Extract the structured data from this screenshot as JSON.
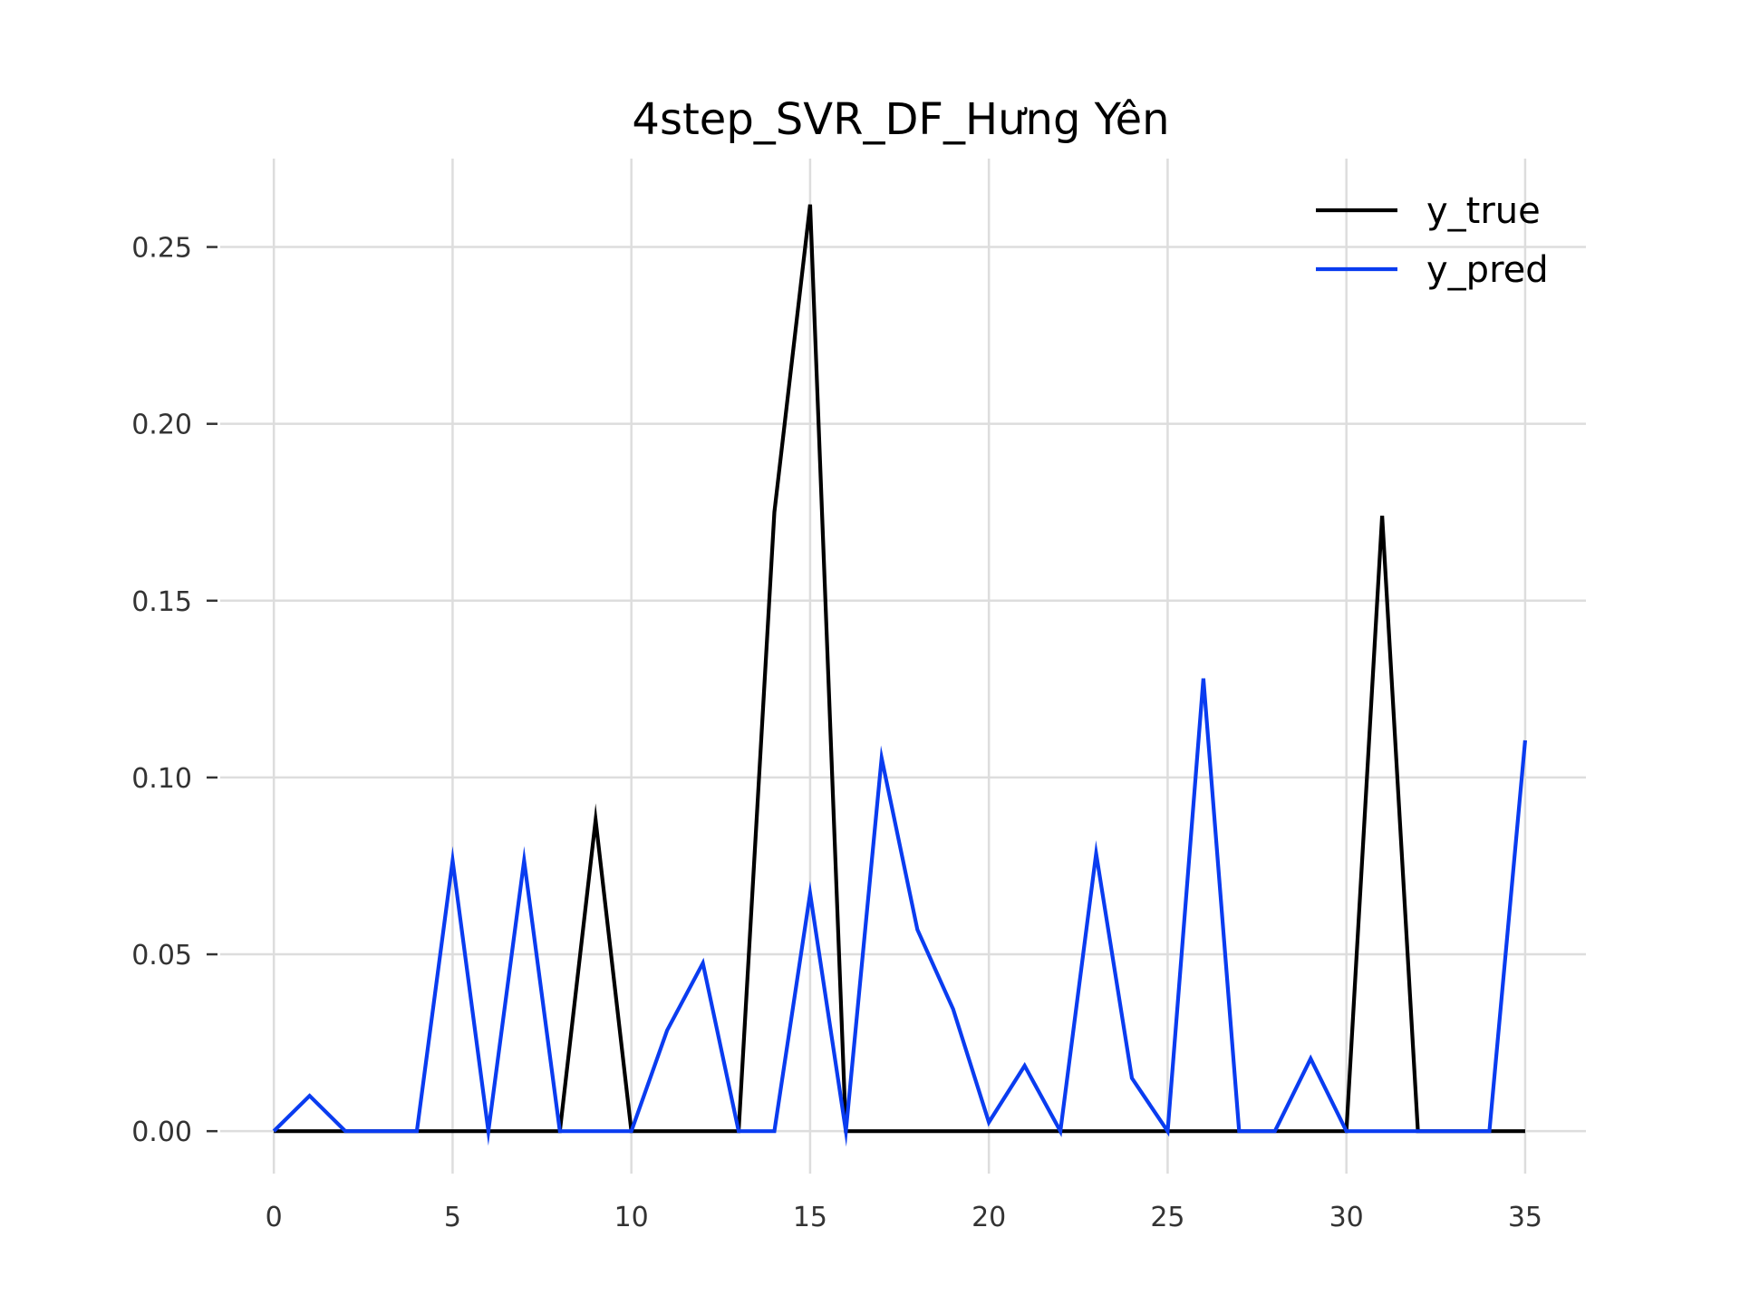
{
  "chart_data": {
    "type": "line",
    "title": "4step_SVR_DF_Hưng Yên",
    "xlabel": "",
    "ylabel": "",
    "x": [
      0,
      1,
      2,
      3,
      4,
      5,
      6,
      7,
      8,
      9,
      10,
      11,
      12,
      13,
      14,
      15,
      16,
      17,
      18,
      19,
      20,
      21,
      22,
      23,
      24,
      25,
      26,
      27,
      28,
      29,
      30,
      31,
      32,
      33,
      34,
      35
    ],
    "xlim": [
      -1.5,
      36.7
    ],
    "ylim": [
      -0.012,
      0.275
    ],
    "x_ticks": [
      0,
      5,
      10,
      15,
      20,
      25,
      30,
      35
    ],
    "x_tick_labels": [
      "0",
      "5",
      "10",
      "15",
      "20",
      "25",
      "30",
      "35"
    ],
    "y_ticks": [
      0.0,
      0.05,
      0.1,
      0.15,
      0.2,
      0.25
    ],
    "y_tick_labels": [
      "0.00",
      "0.05",
      "0.10",
      "0.15",
      "0.20",
      "0.25"
    ],
    "grid": true,
    "legend_position": "top-right",
    "series": [
      {
        "name": "y_true",
        "color": "#000000",
        "values": [
          0,
          0,
          0,
          0,
          0,
          0,
          0,
          0,
          0,
          0.088,
          0,
          0,
          0,
          0,
          0.175,
          0.262,
          0,
          0,
          0,
          0,
          0,
          0,
          0,
          0,
          0,
          0,
          0,
          0,
          0,
          0,
          0,
          0.174,
          0,
          0,
          0,
          0
        ]
      },
      {
        "name": "y_pred",
        "color": "#0a3cf0",
        "values": [
          0,
          0.01,
          0,
          0,
          0,
          0.0765,
          0,
          0.0765,
          0,
          0,
          0,
          0.0285,
          0.0475,
          0,
          0,
          0.0672,
          0,
          0.1055,
          0.057,
          0.0345,
          0.0025,
          0.0185,
          0,
          0.0785,
          0.015,
          0,
          0.128,
          0,
          0,
          0.0205,
          0,
          0,
          0,
          0,
          0,
          0.1105
        ]
      }
    ]
  }
}
